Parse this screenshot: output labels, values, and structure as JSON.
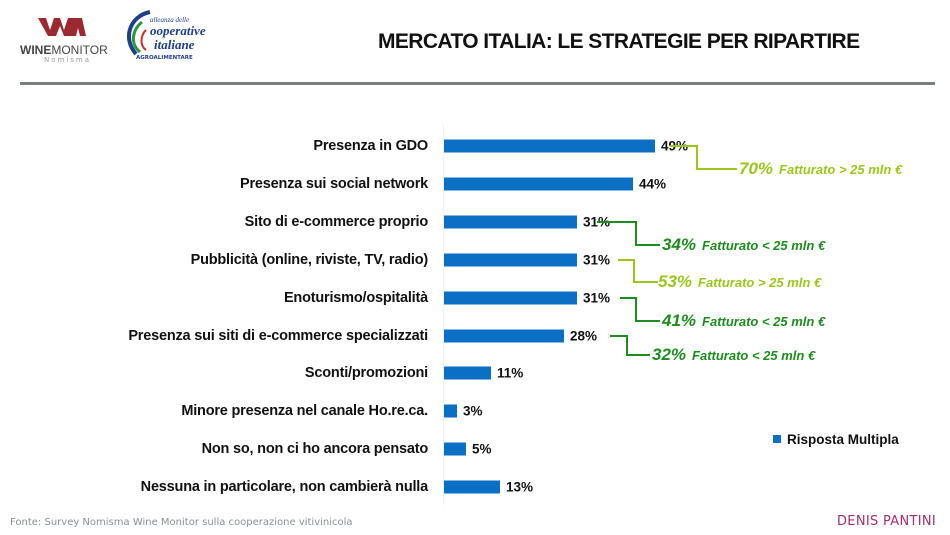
{
  "header": {
    "title": "MERCATO ITALIA: LE STRATEGIE PER RIPARTIRE",
    "logo_winemonitor": {
      "main_bold": "WINE",
      "main_light": "MONITOR",
      "sub": "Nomisma"
    },
    "logo_cooperative": {
      "line1": "alleanza delle",
      "line2": "ooperative",
      "line3": "italiane",
      "line4": "AGROALIMENTARE"
    }
  },
  "colors": {
    "bar": "#0b6fc6",
    "annotation_light_green": "#9ac61c",
    "annotation_dark_green": "#1e8c1e",
    "divider": "#7a7e80",
    "author": "#a0306e"
  },
  "chart_data": {
    "type": "bar",
    "orientation": "horizontal",
    "title": "MERCATO ITALIA: LE STRATEGIE PER RIPARTIRE",
    "xlabel": "",
    "ylabel": "",
    "grid": false,
    "legend_position": "bottom-right",
    "categories": [
      "Presenza in GDO",
      "Presenza sui social network",
      "Sito di e-commerce proprio",
      "Pubblicità (online, riviste, TV, radio)",
      "Enoturismo/ospitalità",
      "Presenza sui siti di e-commerce specializzati",
      "Sconti/promozioni",
      "Minore presenza nel canale Ho.re.ca.",
      "Non so, non ci ho ancora pensato",
      "Nessuna in particolare, non cambierà nulla"
    ],
    "series": [
      {
        "name": "Risposta Multipla",
        "values": [
          49,
          44,
          31,
          31,
          31,
          28,
          11,
          3,
          5,
          13
        ],
        "labels": [
          "49%",
          "44%",
          "31%",
          "31%",
          "31%",
          "28%",
          "11%",
          "3%",
          "5%",
          "13%"
        ]
      }
    ],
    "annotations": [
      {
        "category_index": 0,
        "pct": "70%",
        "text": "Fatturato > 25 mln €",
        "color": "light_green"
      },
      {
        "category_index": 2,
        "pct": "34%",
        "text": "Fatturato < 25 mln €",
        "color": "dark_green"
      },
      {
        "category_index": 3,
        "pct": "53%",
        "text": "Fatturato > 25 mln €",
        "color": "light_green"
      },
      {
        "category_index": 4,
        "pct": "41%",
        "text": "Fatturato < 25 mln €",
        "color": "dark_green"
      },
      {
        "category_index": 5,
        "pct": "32%",
        "text": "Fatturato < 25 mln €",
        "color": "dark_green"
      }
    ]
  },
  "legend": {
    "label": "Risposta Multipla"
  },
  "footer": {
    "source": "Fonte: Survey Nomisma Wine Monitor sulla cooperazione vitivinicola",
    "author": "DENIS PANTINI"
  }
}
